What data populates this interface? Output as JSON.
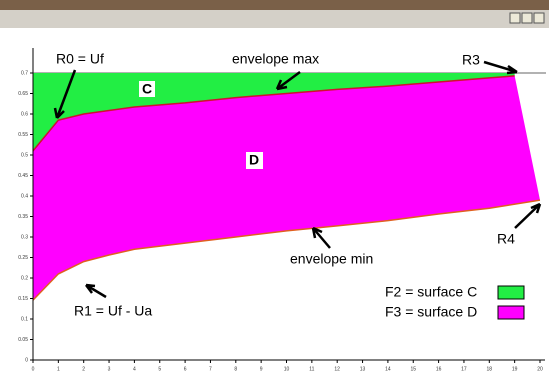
{
  "chart_data": {
    "type": "area",
    "ylim": [
      0,
      0.7
    ],
    "yticks": [
      0,
      0.05,
      0.1,
      0.15,
      0.2,
      0.25,
      0.3,
      0.35,
      0.4,
      0.45,
      0.5,
      0.55,
      0.6,
      0.65,
      0.7
    ],
    "xlim": [
      0,
      20
    ],
    "xticks": [
      0,
      1,
      2,
      3,
      4,
      5,
      6,
      7,
      8,
      9,
      10,
      11,
      12,
      13,
      14,
      15,
      16,
      17,
      18,
      19,
      20
    ],
    "series": [
      {
        "name": "envelope max",
        "color": "#d01030",
        "x": [
          0,
          1,
          2,
          4,
          6,
          8,
          10,
          12,
          14,
          16,
          18,
          19
        ],
        "values": [
          0.51,
          0.585,
          0.6,
          0.617,
          0.627,
          0.64,
          0.65,
          0.66,
          0.668,
          0.678,
          0.688,
          0.693
        ]
      },
      {
        "name": "envelope min",
        "color": "#e06020",
        "x": [
          0,
          1,
          2,
          3,
          4,
          6,
          8,
          10,
          12,
          14,
          16,
          18,
          20
        ],
        "values": [
          0.146,
          0.21,
          0.24,
          0.256,
          0.27,
          0.285,
          0.3,
          0.315,
          0.327,
          0.34,
          0.356,
          0.37,
          0.39
        ]
      }
    ],
    "fills": [
      {
        "name": "F2 = surface C",
        "label": "C",
        "color": "#22ee44"
      },
      {
        "name": "F3 = surface D",
        "label": "D",
        "color": "#ff00ff"
      }
    ],
    "annotations": [
      "R0 = Uf",
      "R3",
      "R1 = Uf - Ua",
      "R4"
    ]
  }
}
